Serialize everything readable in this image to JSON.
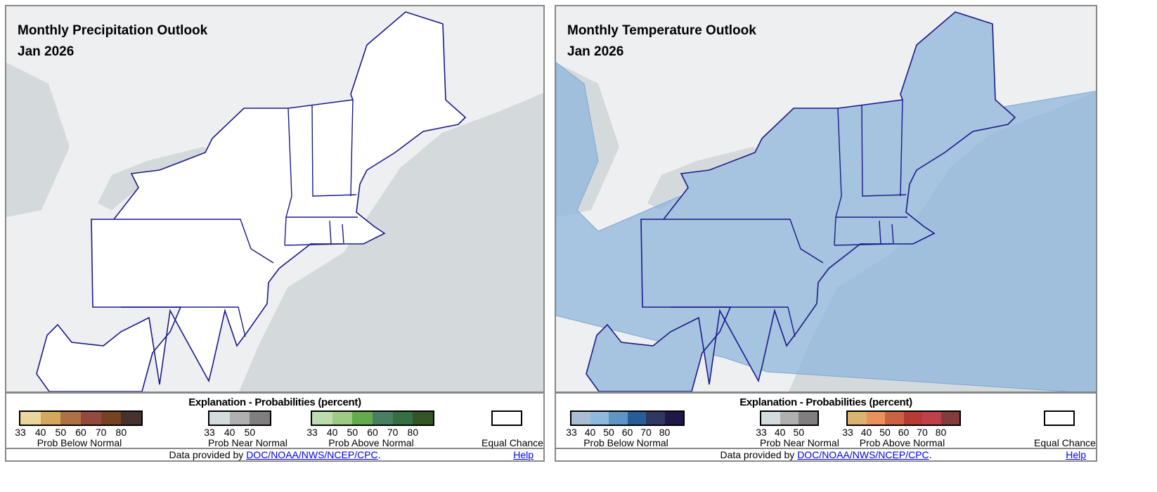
{
  "panels": [
    {
      "title": "Monthly Precipitation Outlook",
      "date": "Jan 2026",
      "legend": {
        "title": "Explanation - Probabilities (percent)",
        "groups": [
          {
            "label": "Prob Below Normal",
            "ticks": [
              "33",
              "40",
              "50",
              "60",
              "70",
              "80"
            ],
            "colors": [
              "#ead59c",
              "#d4a85c",
              "#ad7243",
              "#924a40",
              "#764321",
              "#47332e"
            ]
          },
          {
            "label": "Prob Near Normal",
            "ticks": [
              "33",
              "40",
              "50"
            ],
            "colors": [
              "#d3dcdf",
              "#b1b0b1",
              "#817e7f"
            ]
          },
          {
            "label": "Prob Above Normal",
            "ticks": [
              "33",
              "40",
              "50",
              "60",
              "70",
              "80"
            ],
            "colors": [
              "#bcdcb0",
              "#9fca84",
              "#64ac4b",
              "#4a7e63",
              "#347043",
              "#325625"
            ]
          }
        ],
        "equal_chance": "Equal Chance"
      },
      "footer": {
        "prefix": "Data provided by ",
        "link": "DOC/NOAA/NWS/NCEP/CPC",
        "suffix": ".",
        "help": "Help"
      },
      "shading": "none"
    },
    {
      "title": "Monthly Temperature Outlook",
      "date": "Jan 2026",
      "legend": {
        "title": "Explanation - Probabilities (percent)",
        "groups": [
          {
            "label": "Prob Below Normal",
            "ticks": [
              "33",
              "40",
              "50",
              "60",
              "70",
              "80"
            ],
            "colors": [
              "#a9bdd5",
              "#8eb9df",
              "#5d96c4",
              "#275d96",
              "#2f3862",
              "#1f1748"
            ]
          },
          {
            "label": "Prob Near Normal",
            "ticks": [
              "33",
              "40",
              "50"
            ],
            "colors": [
              "#d3dcdf",
              "#b1b0b1",
              "#817e7f"
            ]
          },
          {
            "label": "Prob Above Normal",
            "ticks": [
              "33",
              "40",
              "50",
              "60",
              "70",
              "80"
            ],
            "colors": [
              "#dbb36e",
              "#eb915c",
              "#cc6340",
              "#b83a34",
              "#bd404a",
              "#823c3c"
            ]
          }
        ],
        "equal_chance": "Equal Chance"
      },
      "footer": {
        "prefix": "Data provided by ",
        "link": "DOC/NOAA/NWS/NCEP/CPC",
        "suffix": ".",
        "help": "Help"
      },
      "shading": "Prob Below Normal 33-40"
    }
  ],
  "colors": {
    "state_outline": "#1a1a8c",
    "ocean": "#d4d9dc",
    "land": "#eeeff0",
    "below_33_40_temp": "#a9c4de"
  }
}
